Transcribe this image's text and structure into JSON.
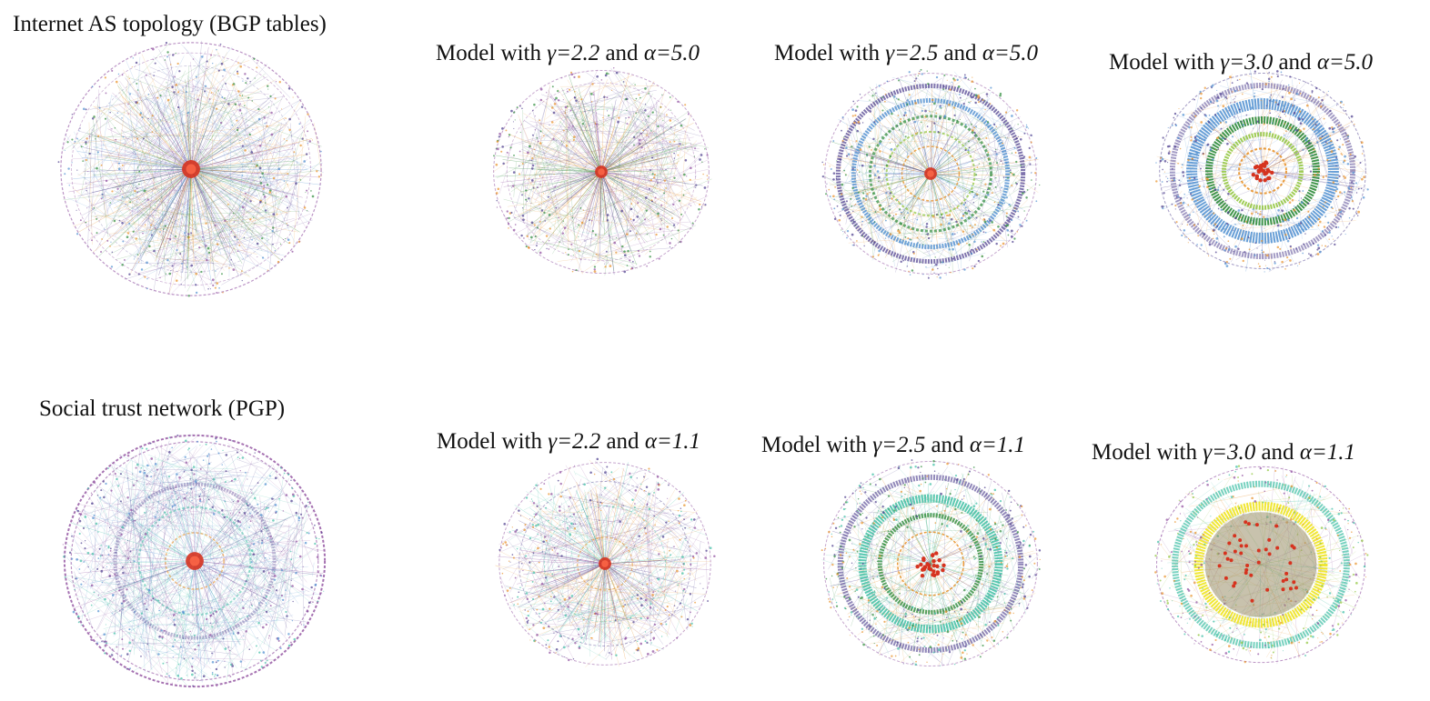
{
  "panels": [
    {
      "id": "p0",
      "title_plain": "Internet AS topology (BGP tables)",
      "variant": "as"
    },
    {
      "id": "p1",
      "pre": "Model with ",
      "gamma": "γ=2.2",
      "mid": " and ",
      "alpha": "α=5.0",
      "variant": "m22a5"
    },
    {
      "id": "p2",
      "pre": "Model with ",
      "gamma": "γ=2.5",
      "mid": " and ",
      "alpha": "α=5.0",
      "variant": "m25a5"
    },
    {
      "id": "p3",
      "pre": "Model with ",
      "gamma": "γ=3.0",
      "mid": " and ",
      "alpha": "α=5.0",
      "variant": "m30a5"
    },
    {
      "id": "p4",
      "title_plain": "Social trust network (PGP)",
      "variant": "pgp"
    },
    {
      "id": "p5",
      "pre": "Model with ",
      "gamma": "γ=2.2",
      "mid": " and ",
      "alpha": "α=1.1",
      "variant": "m22a1"
    },
    {
      "id": "p6",
      "pre": "Model with ",
      "gamma": "γ=2.5",
      "mid": " and ",
      "alpha": "α=1.1",
      "variant": "m25a1"
    },
    {
      "id": "p7",
      "pre": "Model with ",
      "gamma": "γ=3.0",
      "mid": " and ",
      "alpha": "α=1.1",
      "variant": "m30a1"
    }
  ],
  "colors": {
    "outer": "#8e4d9e",
    "deep_purple": "#4a3a8c",
    "blue": "#4f8fd0",
    "teal": "#3fbfa5",
    "green": "#2e8b3a",
    "light_green": "#8fc43a",
    "orange": "#e8922a",
    "core_red": "#d6331f",
    "yellow": "#f0e62a"
  }
}
